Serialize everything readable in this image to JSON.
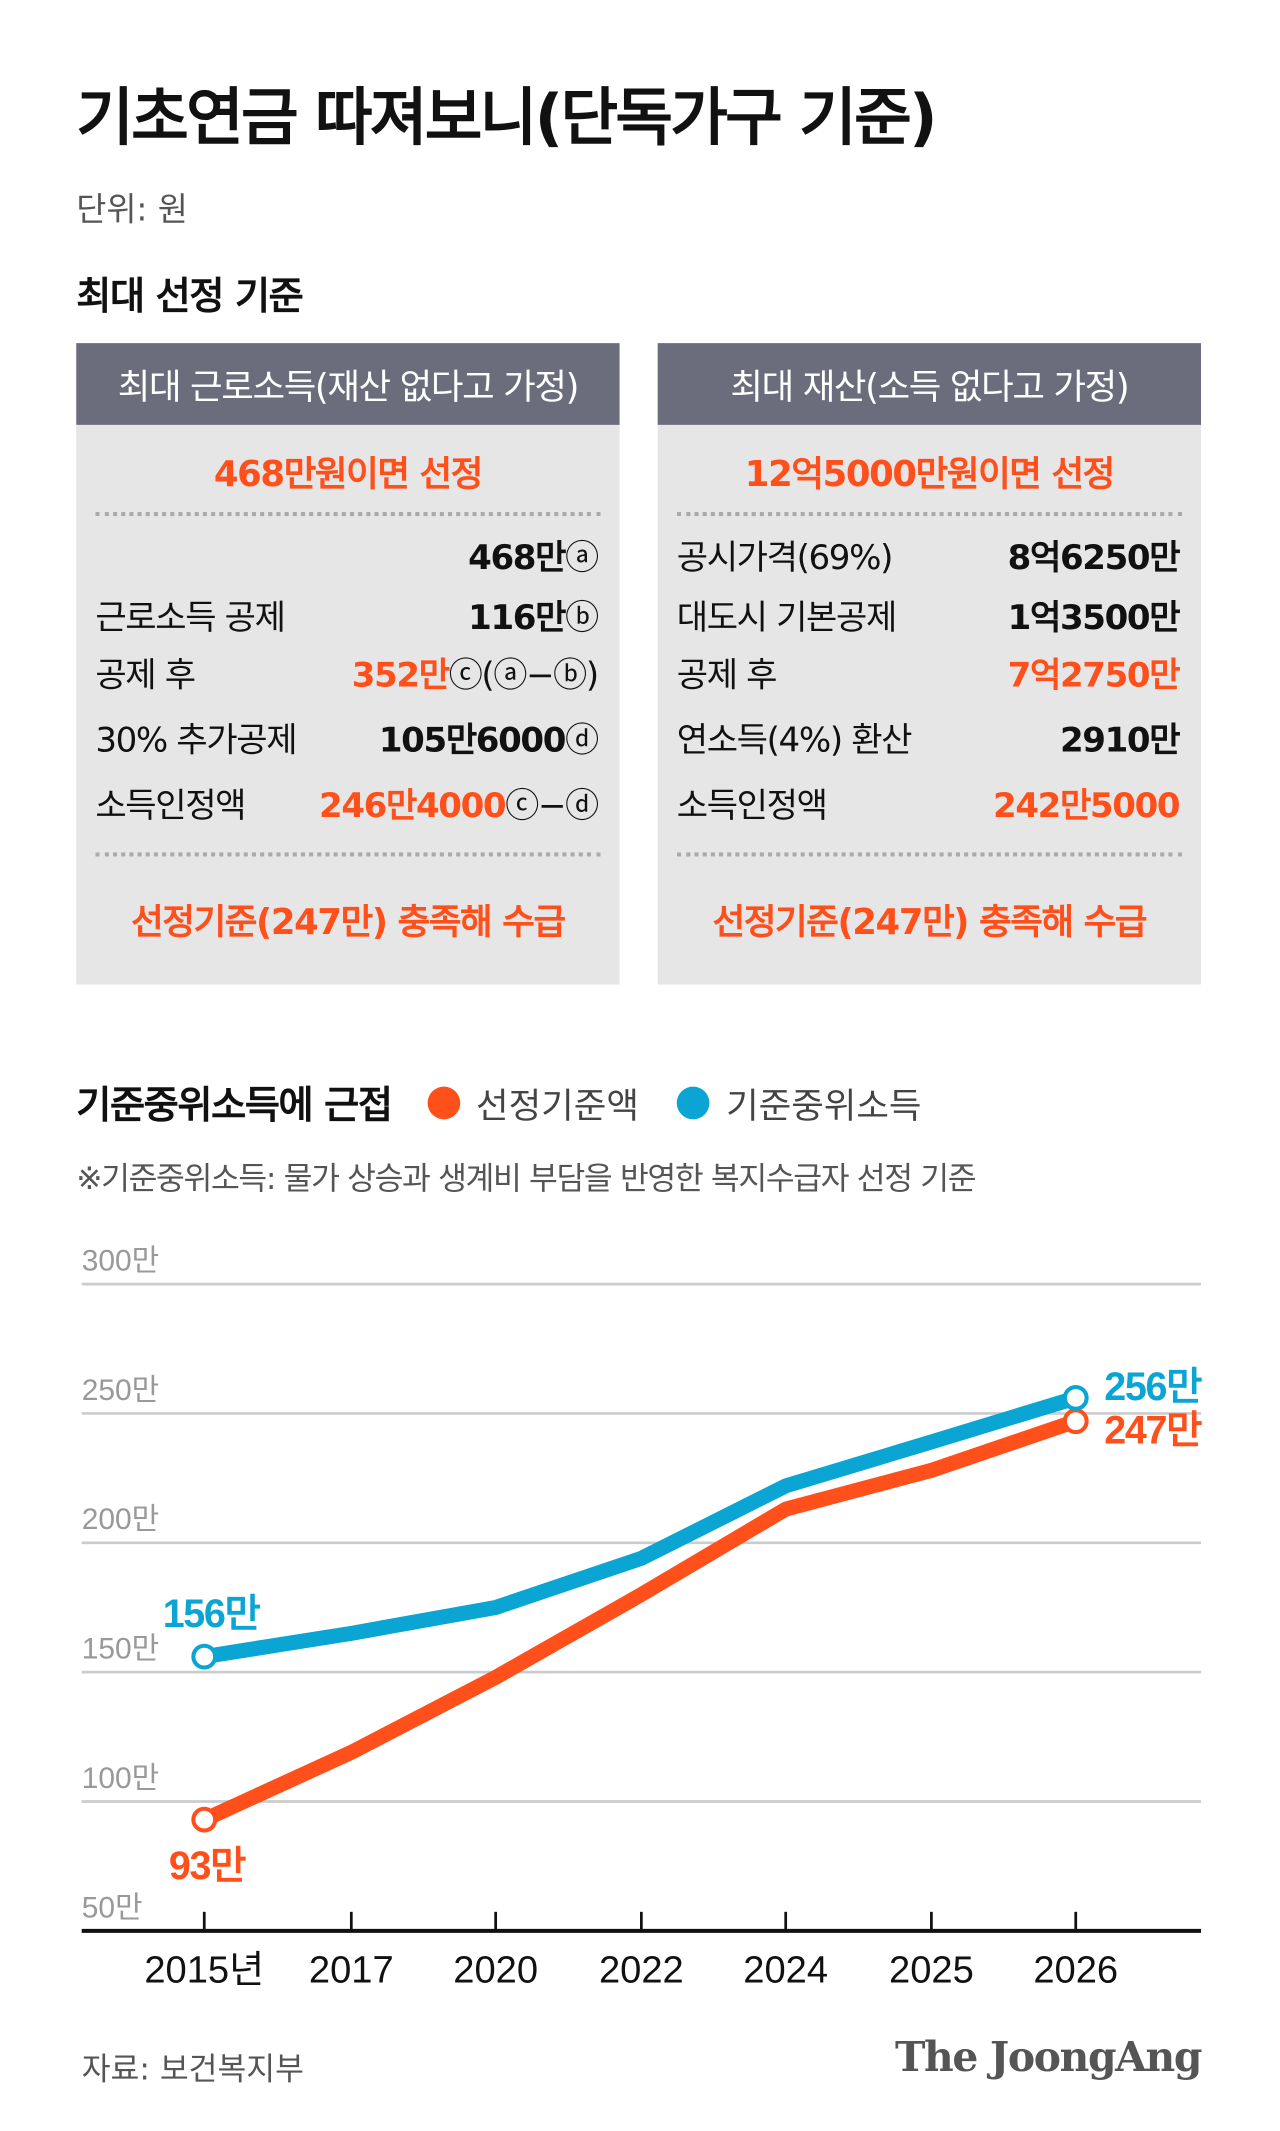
{
  "title": "기초연금 따져보니(단독가구 기준)",
  "unit": "단위: 원",
  "section_title": "최대 선정 기준",
  "left_box": {
    "header": "최대 근로소득(재산 없다고 가정)",
    "summary": "468만원이면 선정",
    "rows": [
      {
        "label": "",
        "value": "468만",
        "note": "ⓐ"
      },
      {
        "label": "근로소득 공제",
        "value": "116만",
        "note": "ⓑ"
      },
      {
        "label": "공제 후",
        "value": "352만",
        "note": "ⓒ(ⓐ−ⓑ)"
      },
      {
        "label": "30% 추가공제",
        "value": "105만6000",
        "note": "ⓓ"
      },
      {
        "label": "소득인정액",
        "value": "246만4000",
        "note": "ⓒ−ⓓ"
      }
    ],
    "footer": "선정기준(247만) 충족해 수급"
  },
  "right_box": {
    "header": "최대 재산(소득 없다고 가정)",
    "summary": "12억5000만원이면 선정",
    "rows": [
      {
        "label": "공시가격(69%)",
        "value": "8억6250만"
      },
      {
        "label": "대도시 기본공제",
        "value": "1억3500만"
      },
      {
        "label": "공제 후",
        "value": "7억2750만"
      },
      {
        "label": "연소득(4%) 환산",
        "value": "2910만"
      },
      {
        "label": "소득인정액",
        "value": "242만5000"
      }
    ],
    "footer": "선정기준(247만) 충족해 수급"
  },
  "colors": {
    "accent": "#ff4f1a",
    "blue": "#0aa5d2",
    "header_bg": "#6c6d7c",
    "box_bg": "#e6e6e6"
  },
  "chart_data": {
    "type": "line",
    "title": "기준중위소득에 근접",
    "note": "※기준중위소득: 물가 상승과 생계비 부담을 반영한 복지수급자 선정 기준",
    "categories": [
      "2015년",
      "2017",
      "2020",
      "2022",
      "2024",
      "2025",
      "2026"
    ],
    "series": [
      {
        "name": "선정기준액",
        "color": "#ff4f1a",
        "values": [
          93,
          119,
          148,
          180,
          213,
          228,
          247
        ]
      },
      {
        "name": "기준중위소득",
        "color": "#0aa5d2",
        "values": [
          156,
          165,
          175,
          194,
          222,
          239,
          256
        ]
      }
    ],
    "y_ticks": [
      "300만",
      "250만",
      "200만",
      "150만",
      "100만",
      "50만"
    ],
    "y_tick_values": [
      300,
      250,
      200,
      150,
      100,
      50
    ],
    "ylim": [
      50,
      300
    ],
    "grid": true,
    "legend": "top-left",
    "data_labels": {
      "orange_start": "93만",
      "orange_end": "247만",
      "blue_start": "156만",
      "blue_end": "256만"
    }
  },
  "source": "자료: 보건복지부",
  "logo": "The JoongAng"
}
